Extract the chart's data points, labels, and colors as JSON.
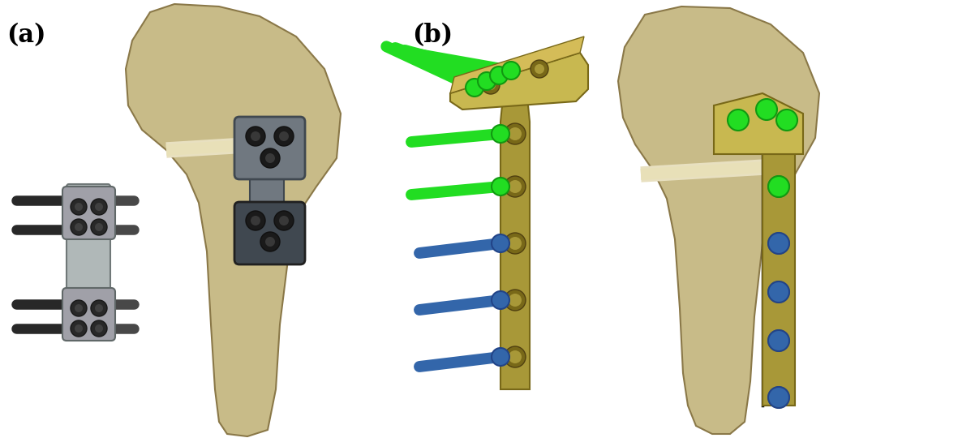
{
  "label_a": "(a)",
  "label_b": "(b)",
  "background_color": "#ffffff",
  "label_fontsize": 22,
  "label_fontweight": "bold",
  "fig_width": 11.81,
  "fig_height": 5.4,
  "dpi": 100,
  "bone_color_light": "#d8cfa0",
  "bone_color_mid": "#c8bb88",
  "bone_color_dark": "#a89860",
  "bone_edge": "#8a7848",
  "plate_gray_light": "#a0a0a8",
  "plate_gray_mid": "#707880",
  "plate_gray_dark": "#404850",
  "plate_gold_light": "#c8b850",
  "plate_gold_mid": "#a89838",
  "plate_gold_dark": "#786818",
  "screw_green": "#22dd22",
  "screw_green_dark": "#119911",
  "screw_blue": "#3366aa",
  "screw_blue_dark": "#224488",
  "pin_dark": "#282828",
  "pin_mid": "#484848",
  "white_gap": "#e8e0c0"
}
